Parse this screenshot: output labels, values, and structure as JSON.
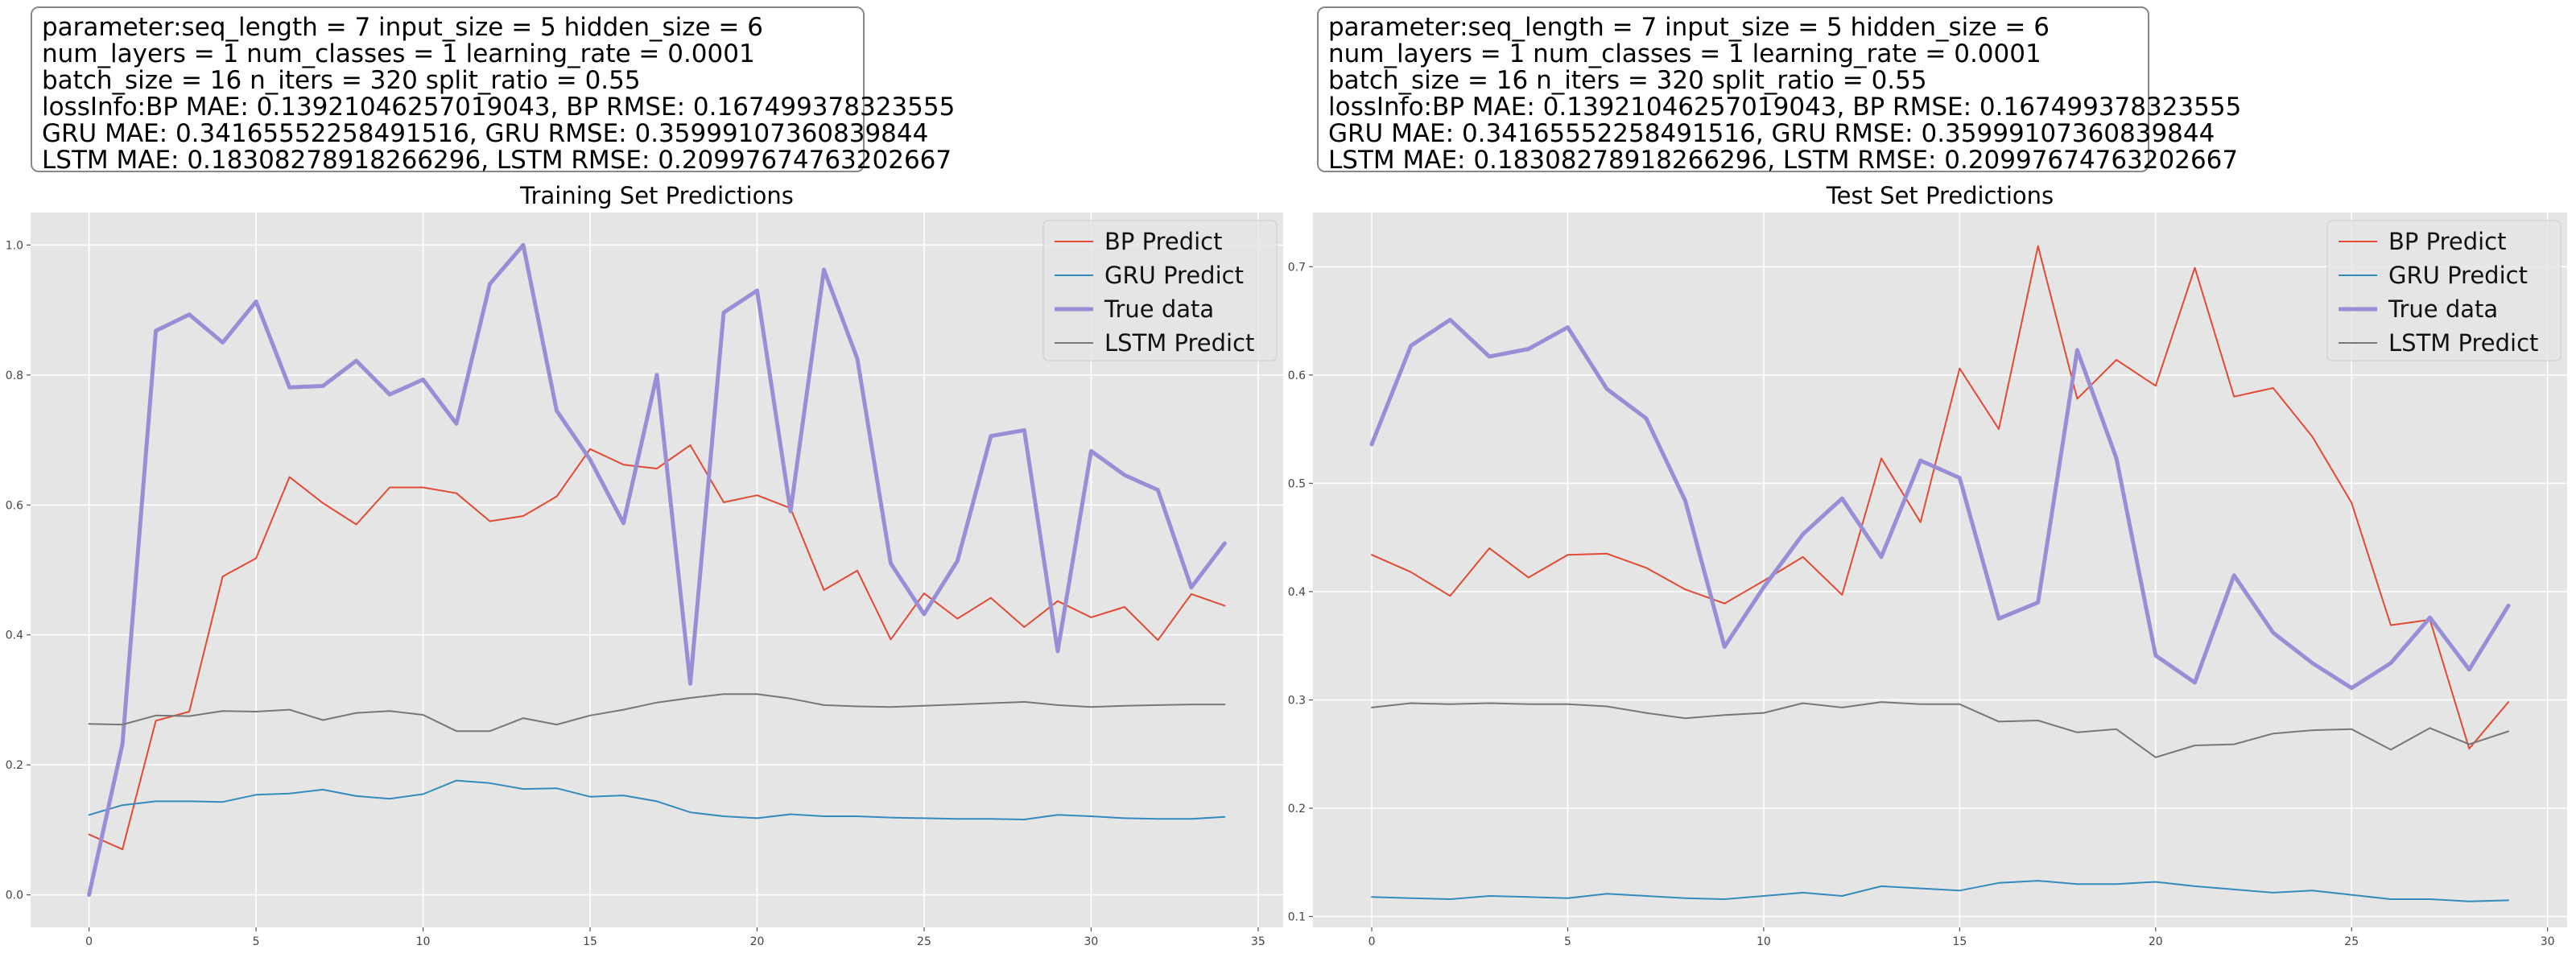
{
  "info_boxes": [
    {
      "lines": [
        "parameter:seq_length = 7 input_size = 5 hidden_size = 6",
        "num_layers = 1 num_classes = 1 learning_rate = 0.0001",
        "batch_size = 16 n_iters = 320 split_ratio = 0.55",
        "lossInfo:BP MAE: 0.13921046257019043, BP RMSE: 0.167499378323555",
        "GRU MAE: 0.34165552258491516, GRU RMSE: 0.35999107360839844",
        "LSTM MAE: 0.18308278918266296, LSTM RMSE: 0.20997674763202667"
      ]
    },
    {
      "lines": [
        "parameter:seq_length = 7 input_size = 5 hidden_size = 6",
        "num_layers = 1 num_classes = 1 learning_rate = 0.0001",
        "batch_size = 16 n_iters = 320 split_ratio = 0.55",
        "lossInfo:BP MAE: 0.13921046257019043, BP RMSE: 0.167499378323555",
        "GRU MAE: 0.34165552258491516, GRU RMSE: 0.35999107360839844",
        "LSTM MAE: 0.18308278918266296, LSTM RMSE: 0.20997674763202667"
      ]
    }
  ],
  "colors": {
    "bp": "#e24a33",
    "gru": "#348abd",
    "true": "#988ed5",
    "lstm": "#777777",
    "plot_bg": "#e5e5e5",
    "grid": "#ffffff"
  },
  "chart_data": [
    {
      "type": "line",
      "title": "Training Set Predictions",
      "xlabel": "",
      "ylabel": "",
      "xlim": [
        -1.75,
        35.75
      ],
      "ylim": [
        -0.05,
        1.05
      ],
      "xticks": [
        0,
        5,
        10,
        15,
        20,
        25,
        30,
        35
      ],
      "xtick_labels": [
        "0",
        "5",
        "10",
        "15",
        "20",
        "25",
        "30",
        "35"
      ],
      "yticks": [
        0.0,
        0.2,
        0.4,
        0.6,
        0.8,
        1.0
      ],
      "ytick_labels": [
        "0.0",
        "0.2",
        "0.4",
        "0.6",
        "0.8",
        "1.0"
      ],
      "grid": true,
      "legend_position": "upper-right",
      "series": [
        {
          "name": "BP Predict",
          "color_key": "bp",
          "width": 2,
          "values": [
            0.093,
            0.07,
            0.268,
            0.282,
            0.49,
            0.518,
            0.643,
            0.603,
            0.57,
            0.627,
            0.627,
            0.618,
            0.575,
            0.583,
            0.613,
            0.686,
            0.662,
            0.656,
            0.692,
            0.604,
            0.615,
            0.595,
            0.469,
            0.499,
            0.393,
            0.464,
            0.425,
            0.457,
            0.412,
            0.452,
            0.427,
            0.443,
            0.392,
            0.463,
            0.445
          ]
        },
        {
          "name": "GRU Predict",
          "color_key": "gru",
          "width": 2,
          "values": [
            0.123,
            0.138,
            0.144,
            0.144,
            0.143,
            0.154,
            0.156,
            0.162,
            0.152,
            0.148,
            0.155,
            0.176,
            0.172,
            0.163,
            0.164,
            0.151,
            0.153,
            0.144,
            0.127,
            0.121,
            0.118,
            0.124,
            0.121,
            0.121,
            0.119,
            0.118,
            0.117,
            0.117,
            0.116,
            0.123,
            0.121,
            0.118,
            0.117,
            0.117,
            0.12
          ]
        },
        {
          "name": "True data",
          "color_key": "true",
          "width": 5,
          "values": [
            0.0,
            0.232,
            0.868,
            0.893,
            0.85,
            0.913,
            0.781,
            0.783,
            0.822,
            0.77,
            0.793,
            0.725,
            0.94,
            1.0,
            0.745,
            0.67,
            0.572,
            0.8,
            0.325,
            0.896,
            0.93,
            0.59,
            0.962,
            0.825,
            0.51,
            0.432,
            0.514,
            0.706,
            0.715,
            0.375,
            0.683,
            0.646,
            0.623,
            0.473,
            0.541
          ]
        },
        {
          "name": "LSTM Predict",
          "color_key": "lstm",
          "width": 2,
          "values": [
            0.263,
            0.262,
            0.276,
            0.275,
            0.283,
            0.282,
            0.285,
            0.269,
            0.28,
            0.283,
            0.277,
            0.252,
            0.252,
            0.272,
            0.262,
            0.276,
            0.285,
            0.296,
            0.303,
            0.309,
            0.309,
            0.302,
            0.292,
            0.29,
            0.289,
            0.291,
            0.293,
            0.295,
            0.297,
            0.292,
            0.289,
            0.291,
            0.292,
            0.293,
            0.293
          ]
        }
      ]
    },
    {
      "type": "line",
      "title": "Test Set Predictions",
      "xlabel": "",
      "ylabel": "",
      "xlim": [
        -1.5,
        30.5
      ],
      "ylim": [
        0.09,
        0.75
      ],
      "xticks": [
        0,
        5,
        10,
        15,
        20,
        25,
        30
      ],
      "xtick_labels": [
        "0",
        "5",
        "10",
        "15",
        "20",
        "25",
        "30"
      ],
      "yticks": [
        0.1,
        0.2,
        0.3,
        0.4,
        0.5,
        0.6,
        0.7
      ],
      "ytick_labels": [
        "0.1",
        "0.2",
        "0.3",
        "0.4",
        "0.5",
        "0.6",
        "0.7"
      ],
      "grid": true,
      "legend_position": "upper-right",
      "series": [
        {
          "name": "BP Predict",
          "color_key": "bp",
          "width": 2,
          "values": [
            0.434,
            0.418,
            0.396,
            0.44,
            0.413,
            0.434,
            0.435,
            0.422,
            0.402,
            0.389,
            0.41,
            0.432,
            0.397,
            0.523,
            0.464,
            0.606,
            0.55,
            0.719,
            0.578,
            0.614,
            0.59,
            0.699,
            0.58,
            0.588,
            0.543,
            0.482,
            0.369,
            0.374,
            0.255,
            0.298
          ]
        },
        {
          "name": "GRU Predict",
          "color_key": "gru",
          "width": 2,
          "values": [
            0.118,
            0.117,
            0.116,
            0.119,
            0.118,
            0.117,
            0.121,
            0.119,
            0.117,
            0.116,
            0.119,
            0.122,
            0.119,
            0.128,
            0.126,
            0.124,
            0.131,
            0.133,
            0.13,
            0.13,
            0.132,
            0.128,
            0.125,
            0.122,
            0.124,
            0.12,
            0.116,
            0.116,
            0.114,
            0.115
          ]
        },
        {
          "name": "True data",
          "color_key": "true",
          "width": 5,
          "values": [
            0.536,
            0.627,
            0.651,
            0.617,
            0.624,
            0.644,
            0.587,
            0.56,
            0.484,
            0.349,
            0.404,
            0.453,
            0.486,
            0.432,
            0.521,
            0.505,
            0.375,
            0.39,
            0.623,
            0.523,
            0.341,
            0.316,
            0.415,
            0.362,
            0.334,
            0.311,
            0.334,
            0.376,
            0.328,
            0.387
          ]
        },
        {
          "name": "LSTM Predict",
          "color_key": "lstm",
          "width": 2,
          "values": [
            0.293,
            0.297,
            0.296,
            0.297,
            0.296,
            0.296,
            0.294,
            0.288,
            0.283,
            0.286,
            0.288,
            0.297,
            0.293,
            0.298,
            0.296,
            0.296,
            0.28,
            0.281,
            0.27,
            0.273,
            0.247,
            0.258,
            0.259,
            0.269,
            0.272,
            0.273,
            0.254,
            0.274,
            0.259,
            0.271
          ]
        }
      ]
    }
  ]
}
